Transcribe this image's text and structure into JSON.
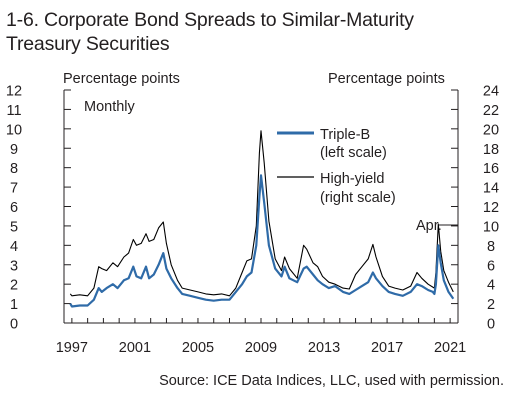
{
  "title_line1": "1-6. Corporate Bond Spreads to Similar-Maturity",
  "title_line2": "Treasury Securities",
  "source": "Source: ICE Data Indices, LLC, used with permission.",
  "chart_data": {
    "type": "line",
    "left_axis_label": "Percentage points",
    "right_axis_label": "Percentage points",
    "frequency_note": "Monthly",
    "annotation": "Apr.",
    "x_ticks": [
      "1997",
      "2001",
      "2005",
      "2009",
      "2013",
      "2017",
      "2021"
    ],
    "x_range": [
      1996.5,
      2021.5
    ],
    "left_ylim": [
      0,
      12
    ],
    "left_ticks": [
      0,
      1,
      2,
      3,
      4,
      5,
      6,
      7,
      8,
      9,
      10,
      11,
      12
    ],
    "right_ylim": [
      0,
      24
    ],
    "right_ticks": [
      0,
      2,
      4,
      6,
      8,
      10,
      12,
      14,
      16,
      18,
      20,
      22,
      24
    ],
    "series": [
      {
        "name": "Triple-B",
        "scale_note": "(left scale)",
        "axis": "left",
        "color": "#2f6ba8",
        "x": [
          1996.9,
          1997.0,
          1997.5,
          1998.0,
          1998.4,
          1998.7,
          1998.9,
          1999.2,
          1999.6,
          1999.9,
          2000.3,
          2000.6,
          2000.9,
          2001.1,
          2001.4,
          2001.7,
          2001.9,
          2002.2,
          2002.5,
          2002.8,
          2003.0,
          2003.3,
          2003.7,
          2004.0,
          2004.5,
          2005.0,
          2005.5,
          2006.0,
          2006.5,
          2007.0,
          2007.4,
          2007.8,
          2008.1,
          2008.4,
          2008.7,
          2008.9,
          2009.0,
          2009.2,
          2009.5,
          2009.9,
          2010.3,
          2010.5,
          2010.8,
          2011.3,
          2011.7,
          2011.9,
          2012.3,
          2012.6,
          2012.9,
          2013.3,
          2013.7,
          2014.2,
          2014.6,
          2015.0,
          2015.4,
          2015.8,
          2016.1,
          2016.3,
          2016.7,
          2017.1,
          2017.5,
          2018.0,
          2018.5,
          2018.9,
          2019.2,
          2019.6,
          2019.9,
          2020.0,
          2020.1,
          2020.25,
          2020.4,
          2020.6,
          2020.9,
          2021.2
        ],
        "values": [
          1.0,
          0.85,
          0.9,
          0.9,
          1.2,
          1.8,
          1.6,
          1.8,
          2.0,
          1.8,
          2.2,
          2.3,
          2.9,
          2.4,
          2.3,
          2.9,
          2.3,
          2.5,
          3.0,
          3.6,
          2.8,
          2.3,
          1.8,
          1.5,
          1.4,
          1.3,
          1.2,
          1.15,
          1.2,
          1.2,
          1.6,
          2.0,
          2.4,
          2.6,
          4.0,
          6.5,
          7.6,
          6.2,
          4.0,
          2.8,
          2.4,
          2.9,
          2.3,
          2.1,
          2.8,
          2.9,
          2.5,
          2.2,
          2.0,
          1.8,
          1.9,
          1.6,
          1.5,
          1.7,
          1.9,
          2.1,
          2.6,
          2.3,
          1.9,
          1.6,
          1.5,
          1.4,
          1.6,
          2.0,
          1.9,
          1.7,
          1.6,
          1.5,
          2.0,
          4.0,
          3.1,
          2.2,
          1.6,
          1.25
        ]
      },
      {
        "name": "High-yield",
        "scale_note": "(right scale)",
        "axis": "right",
        "color": "#000000",
        "x": [
          1996.9,
          1997.0,
          1997.5,
          1998.0,
          1998.4,
          1998.7,
          1998.9,
          1999.2,
          1999.6,
          1999.9,
          2000.3,
          2000.6,
          2000.9,
          2001.1,
          2001.4,
          2001.7,
          2001.9,
          2002.2,
          2002.5,
          2002.8,
          2003.0,
          2003.3,
          2003.7,
          2004.0,
          2004.5,
          2005.0,
          2005.5,
          2006.0,
          2006.5,
          2007.0,
          2007.4,
          2007.8,
          2008.1,
          2008.4,
          2008.7,
          2008.9,
          2009.0,
          2009.2,
          2009.5,
          2009.9,
          2010.3,
          2010.5,
          2010.8,
          2011.3,
          2011.7,
          2011.9,
          2012.3,
          2012.6,
          2012.9,
          2013.3,
          2013.7,
          2014.2,
          2014.6,
          2015.0,
          2015.4,
          2015.8,
          2016.1,
          2016.3,
          2016.7,
          2017.1,
          2017.5,
          2018.0,
          2018.5,
          2018.9,
          2019.2,
          2019.6,
          2019.9,
          2020.0,
          2020.1,
          2020.25,
          2020.4,
          2020.6,
          2020.9,
          2021.2
        ],
        "values": [
          3.0,
          2.8,
          2.9,
          2.8,
          3.6,
          5.8,
          5.6,
          5.4,
          6.2,
          5.8,
          6.8,
          7.2,
          8.6,
          8.0,
          8.2,
          9.2,
          8.4,
          8.6,
          9.8,
          10.4,
          8.2,
          6.0,
          4.4,
          3.6,
          3.4,
          3.2,
          3.0,
          2.9,
          3.0,
          2.8,
          3.6,
          5.2,
          6.4,
          6.6,
          10.0,
          17.5,
          19.8,
          16.5,
          10.5,
          6.6,
          5.4,
          6.8,
          5.6,
          4.6,
          8.0,
          7.6,
          6.2,
          5.8,
          4.8,
          4.2,
          4.0,
          3.6,
          3.5,
          5.0,
          5.8,
          6.6,
          8.1,
          6.8,
          4.8,
          3.8,
          3.6,
          3.4,
          3.8,
          5.2,
          4.6,
          4.0,
          3.7,
          3.6,
          5.2,
          10.2,
          7.4,
          5.4,
          4.2,
          3.2
        ]
      }
    ]
  }
}
